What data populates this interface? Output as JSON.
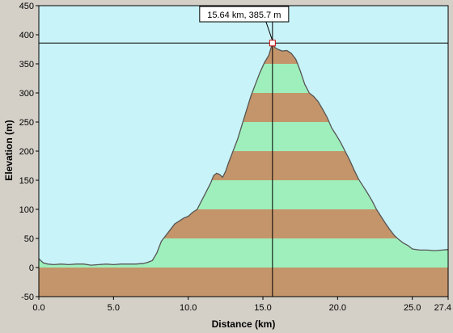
{
  "chart_data": {
    "type": "area",
    "title": "",
    "xlabel": "Distance   (km)",
    "ylabel": "Elevation (m)",
    "xlim": [
      0,
      27.4
    ],
    "ylim": [
      -50,
      450
    ],
    "x_ticks": [
      0,
      5,
      10,
      15,
      20,
      25,
      27.4
    ],
    "x_tick_labels": [
      "0.0",
      "5.0",
      "10.0",
      "15.0",
      "20.0",
      "25.0",
      "27.4"
    ],
    "y_ticks": [
      -50,
      0,
      50,
      100,
      150,
      200,
      250,
      300,
      350,
      400,
      450
    ],
    "y_tick_labels": [
      "-50",
      "0",
      "50",
      "100",
      "150",
      "200",
      "250",
      "300",
      "350",
      "400",
      "450"
    ],
    "band_interval_m": 50,
    "grid": false,
    "legend": "none",
    "colors": {
      "background": "#d4d0c8",
      "sky": "#c8f3f8",
      "band_brown": "#c4956a",
      "band_green": "#9eefbc",
      "profile_line": "#555555",
      "crosshair": "#000000",
      "marker": "#cc0000"
    },
    "cursor": {
      "x": 15.64,
      "y": 385.7,
      "label": "15.64 km, 385.7 m"
    },
    "series": [
      {
        "x": [
          0,
          0.3,
          0.6,
          1.0,
          1.5,
          2.0,
          2.5,
          3.0,
          3.5,
          4.0,
          4.5,
          5.0,
          5.5,
          6.0,
          6.5,
          7.0,
          7.3,
          7.6,
          7.9,
          8.2,
          8.5,
          8.8,
          9.1,
          9.4,
          9.7,
          10.0,
          10.3,
          10.6,
          10.9,
          11.2,
          11.5,
          11.7,
          11.9,
          12.1,
          12.3,
          12.5,
          12.7,
          13.0,
          13.3,
          13.6,
          13.9,
          14.2,
          14.5,
          14.8,
          15.1,
          15.4,
          15.64,
          15.8,
          16.0,
          16.3,
          16.6,
          16.9,
          17.2,
          17.5,
          17.8,
          18.1,
          18.4,
          18.7,
          19.0,
          19.3,
          19.6,
          19.9,
          20.2,
          20.5,
          20.8,
          21.1,
          21.4,
          21.7,
          22.0,
          22.3,
          22.6,
          22.9,
          23.2,
          23.5,
          23.8,
          24.1,
          24.4,
          24.7,
          25.0,
          25.5,
          26.0,
          26.5,
          27.0,
          27.4
        ],
        "y": [
          15,
          8,
          6,
          5,
          6,
          5,
          6,
          6,
          4,
          5,
          6,
          5,
          6,
          6,
          6,
          7,
          9,
          12,
          25,
          45,
          55,
          65,
          75,
          80,
          85,
          88,
          95,
          100,
          115,
          130,
          145,
          158,
          162,
          160,
          155,
          165,
          180,
          200,
          220,
          245,
          270,
          295,
          315,
          335,
          352,
          365,
          385.7,
          378,
          375,
          372,
          373,
          368,
          358,
          338,
          315,
          300,
          294,
          285,
          272,
          258,
          240,
          228,
          215,
          200,
          185,
          168,
          152,
          140,
          128,
          115,
          100,
          88,
          76,
          65,
          55,
          48,
          42,
          38,
          32,
          30,
          30,
          29,
          30,
          31
        ]
      }
    ]
  }
}
